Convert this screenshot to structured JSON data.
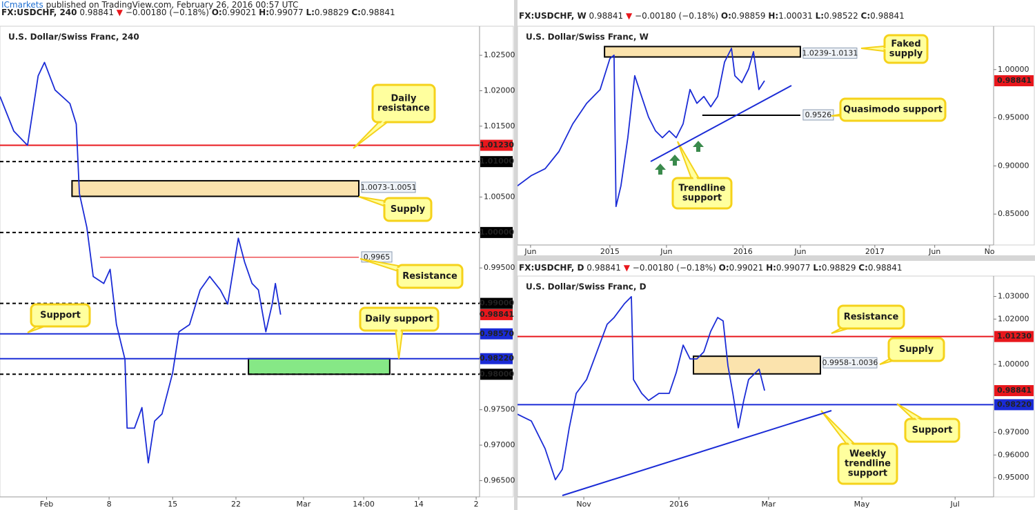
{
  "page": {
    "publisher": "ICmarkets",
    "note": "published on TradingView.com, February 26, 2016 00:57 UTC"
  },
  "chart_data": [
    {
      "type": "line",
      "title": "U.S. Dollar/Swiss Franc, 240",
      "header": {
        "symbol": "FX:USDCHF, 240",
        "last": "0.98841",
        "arrow": "▼",
        "change": "−0.00180 (−0.18%)",
        "ohlc": [
          [
            "O:",
            "0.99021"
          ],
          [
            "H:",
            "0.99077"
          ],
          [
            "L:",
            "0.98829"
          ],
          [
            "C:",
            "0.98841"
          ]
        ]
      },
      "x": [
        0,
        6.5,
        13,
        18,
        21,
        26,
        33,
        36,
        37.5,
        41,
        44,
        49,
        52,
        55,
        59,
        60,
        63.5,
        67,
        70,
        73,
        76.5,
        81.5,
        84.5,
        89.5,
        94.5,
        99,
        104,
        107.5,
        112.5,
        115.5,
        119,
        122,
        125.5,
        128.5,
        130,
        132.5
      ],
      "series": [
        {
          "name": "USDCHF",
          "color": "#1a2bd6",
          "values": [
            1.0192,
            1.0143,
            1.0123,
            1.0221,
            1.024,
            1.0201,
            1.0182,
            1.0153,
            1.0055,
            1.0007,
            0.9938,
            0.9928,
            0.9948,
            0.987,
            0.9821,
            0.9724,
            0.9724,
            0.9753,
            0.9675,
            0.9734,
            0.9744,
            0.9802,
            0.986,
            0.987,
            0.9919,
            0.9938,
            0.9919,
            0.9899,
            0.9992,
            0.9958,
            0.9928,
            0.9919,
            0.986,
            0.9899,
            0.9928,
            0.98841
          ]
        }
      ],
      "xlim": [
        0,
        226.4
      ],
      "xticks": [
        {
          "value": 22,
          "label": "Feb"
        },
        {
          "value": 51.5,
          "label": "8"
        },
        {
          "value": 81.5,
          "label": "15"
        },
        {
          "value": 111.4,
          "label": "22"
        },
        {
          "value": 143.3,
          "label": "Mar"
        },
        {
          "value": 171.7,
          "label": "14:00"
        },
        {
          "value": 197.7,
          "label": "14"
        },
        {
          "value": 224.8,
          "label": "2"
        }
      ],
      "ylim": [
        0.9627,
        1.0291
      ],
      "yticks": [
        {
          "value": 1.025,
          "label": "1.02500"
        },
        {
          "value": 1.02,
          "label": "1.02000"
        },
        {
          "value": 1.015,
          "label": "1.01500"
        },
        {
          "value": 1.005,
          "label": "1.00500"
        },
        {
          "value": 0.995,
          "label": "0.99500"
        },
        {
          "value": 0.975,
          "label": "0.97500"
        },
        {
          "value": 0.97,
          "label": "0.97000"
        },
        {
          "value": 0.965,
          "label": "0.96500"
        }
      ],
      "levels": [
        {
          "value": 1.0123,
          "label": "1.01230",
          "color": "#e8171c",
          "style": "solid",
          "tag": true
        },
        {
          "value": 1.01,
          "label": "1.01000",
          "color": "#000000",
          "style": "dashed",
          "tag": true
        },
        {
          "value": 1.0,
          "label": "1.00000",
          "color": "#000000",
          "style": "dashed",
          "tag": true
        },
        {
          "value": 0.9965,
          "label": "0.9965",
          "color": "#e8171c",
          "style": "thin",
          "tag": false,
          "xrange": [
            47.2,
            169.4
          ]
        },
        {
          "value": 0.99,
          "label": "0.99000",
          "color": "#000000",
          "style": "dashed",
          "tag": true
        },
        {
          "value": 0.9857,
          "label": "0.98570",
          "color": "#1a2bd6",
          "style": "solid",
          "tag": true
        },
        {
          "value": 0.9822,
          "label": "0.98220",
          "color": "#1a2bd6",
          "style": "solid",
          "tag": true
        },
        {
          "value": 0.98,
          "label": "0.98000",
          "color": "#000000",
          "style": "dashed",
          "tag": true
        }
      ],
      "last_price": {
        "value": 0.98841,
        "label": "0.98841",
        "color": "#e8171c"
      },
      "zones": [
        {
          "low": 1.0051,
          "high": 1.0073,
          "label": "1.0073-1.0051",
          "color": "#fbe3ad",
          "xrange": [
            34,
            169.4
          ]
        },
        {
          "low": 0.98,
          "high": 0.9822,
          "color": "#86e886",
          "xrange": [
            117.3,
            184
          ]
        }
      ],
      "annotations": [
        [
          "Daily",
          "resistance"
        ],
        [
          "Supply"
        ],
        [
          "Resistance"
        ],
        [
          "Support"
        ],
        [
          "Daily support"
        ]
      ]
    },
    {
      "type": "line",
      "title": "U.S. Dollar/Swiss Franc, W",
      "header": {
        "symbol": "FX:USDCHF, W",
        "last": "0.98841",
        "arrow": "▼",
        "change": "−0.00180 (−0.18%)",
        "ohlc": [
          [
            "O:",
            "0.98859"
          ],
          [
            "H:",
            "1.00031"
          ],
          [
            "L:",
            "0.98522"
          ],
          [
            "C:",
            "0.98841"
          ]
        ]
      },
      "x": [
        0,
        5.4,
        10.8,
        16.2,
        21.6,
        27,
        32.3,
        36.1,
        37.7,
        38.5,
        40.4,
        43.1,
        45.8,
        48.5,
        51.2,
        53.9,
        56.6,
        59.3,
        62,
        64.7,
        67.4,
        70.1,
        72.8,
        75.5,
        78.2,
        80.9,
        83.6,
        84.9,
        87.6,
        90.3,
        92.2,
        94.3,
        96.5
      ],
      "series": [
        {
          "name": "USDCHF",
          "color": "#1a2bd6",
          "values": [
            0.8793,
            0.89,
            0.8971,
            0.915,
            0.9436,
            0.965,
            0.9793,
            1.0114,
            1.015,
            0.8579,
            0.8793,
            0.9293,
            0.9936,
            0.9721,
            0.9507,
            0.9364,
            0.9293,
            0.9364,
            0.9293,
            0.9436,
            0.9793,
            0.965,
            0.9721,
            0.9614,
            0.9721,
            1.0079,
            1.0221,
            0.9936,
            0.9864,
            1.0007,
            1.0186,
            0.9793,
            0.98841
          ]
        }
      ],
      "xlim": [
        0,
        186
      ],
      "xticks": [
        {
          "value": 5.1,
          "label": "Jun"
        },
        {
          "value": 36.1,
          "label": "2015"
        },
        {
          "value": 58.2,
          "label": "Jun"
        },
        {
          "value": 88.1,
          "label": "2016"
        },
        {
          "value": 110.5,
          "label": "Jun"
        },
        {
          "value": 139.6,
          "label": "2017"
        },
        {
          "value": 163,
          "label": "Jun"
        },
        {
          "value": 184.4,
          "label": "No"
        }
      ],
      "ylim": [
        0.8179,
        1.045
      ],
      "yticks": [
        {
          "value": 1.0,
          "label": "1.00000"
        },
        {
          "value": 0.95,
          "label": "0.95000"
        },
        {
          "value": 0.9,
          "label": "0.90000"
        },
        {
          "value": 0.85,
          "label": "0.85000"
        }
      ],
      "levels": [
        {
          "value": 0.9526,
          "label": "0.9526",
          "color": "#000000",
          "style": "solid",
          "tag": false,
          "xrange": [
            72.2,
            110.5
          ]
        }
      ],
      "last_price": {
        "value": 0.98841,
        "label": "0.98841",
        "color": "#e8171c"
      },
      "zones": [
        {
          "low": 1.0131,
          "high": 1.0239,
          "label": "1.0239-1.0131",
          "color": "#fbe3ad",
          "xrange": [
            34,
            110.5
          ]
        }
      ],
      "annotations": [
        [
          "Faked",
          "supply"
        ],
        [
          "Quasimodo support"
        ],
        [
          "Trendline",
          "support"
        ]
      ]
    },
    {
      "type": "line",
      "title": "U.S. Dollar/Swiss Franc, D",
      "header": {
        "symbol": "FX:USDCHF, D",
        "last": "0.98841",
        "arrow": "▼",
        "change": "−0.00180 (−0.18%)",
        "ohlc": [
          [
            "O:",
            "0.99021"
          ],
          [
            "H:",
            "0.99077"
          ],
          [
            "L:",
            "0.98829"
          ],
          [
            "C:",
            "0.98841"
          ]
        ]
      },
      "x": [
        0,
        6.6,
        13.1,
        18,
        21.3,
        24.6,
        27.9,
        32.8,
        37.7,
        42.6,
        45.9,
        50.8,
        54.1,
        55.1,
        59,
        62.3,
        67.2,
        72.1,
        75.4,
        78.7,
        82,
        85.2,
        88.5,
        91.8,
        95.1,
        97.7,
        100,
        102.3,
        104.9,
        107.5,
        109.8,
        113.1,
        114.8,
        117.4
      ],
      "series": [
        {
          "name": "USDCHF",
          "color": "#1a2bd6",
          "values": [
            0.978,
            0.975,
            0.9628,
            0.9491,
            0.9537,
            0.972,
            0.9872,
            0.9933,
            1.0055,
            1.0177,
            1.0207,
            1.0268,
            1.0299,
            0.9933,
            0.9872,
            0.9841,
            0.9872,
            0.9872,
            0.9963,
            1.0085,
            1.0024,
            1.0024,
            1.0055,
            1.0146,
            1.0207,
            1.0192,
            0.9994,
            0.9872,
            0.972,
            0.9841,
            0.9933,
            0.9963,
            0.9979,
            0.98841
          ]
        }
      ],
      "xlim": [
        0,
        226.2
      ],
      "xticks": [
        {
          "value": 31.5,
          "label": "Nov"
        },
        {
          "value": 76.7,
          "label": "2016"
        },
        {
          "value": 119.3,
          "label": "Mar"
        },
        {
          "value": 163.6,
          "label": "May"
        },
        {
          "value": 207.9,
          "label": "Jul"
        }
      ],
      "ylim": [
        0.9415,
        1.039
      ],
      "yticks": [
        {
          "value": 1.03,
          "label": "1.03000"
        },
        {
          "value": 1.02,
          "label": "1.02000"
        },
        {
          "value": 1.0,
          "label": "1.00000"
        },
        {
          "value": 0.97,
          "label": "0.97000"
        },
        {
          "value": 0.96,
          "label": "0.96000"
        },
        {
          "value": 0.95,
          "label": "0.95000"
        }
      ],
      "levels": [
        {
          "value": 1.0123,
          "label": "1.01230",
          "color": "#e8171c",
          "style": "solid",
          "tag": true
        },
        {
          "value": 0.9822,
          "label": "0.98220",
          "color": "#1a2bd6",
          "style": "solid",
          "tag": true
        }
      ],
      "last_price": {
        "value": 0.98841,
        "label": "0.98841",
        "color": "#e8171c"
      },
      "zones": [
        {
          "low": 0.9958,
          "high": 1.0036,
          "label": "0.9958-1.0036",
          "color": "#fbe3ad",
          "xrange": [
            83.6,
            143.9
          ]
        }
      ],
      "annotations": [
        [
          "Resistance"
        ],
        [
          "Supply"
        ],
        [
          "Support"
        ],
        [
          "Weekly",
          "trendline",
          "support"
        ]
      ]
    }
  ]
}
